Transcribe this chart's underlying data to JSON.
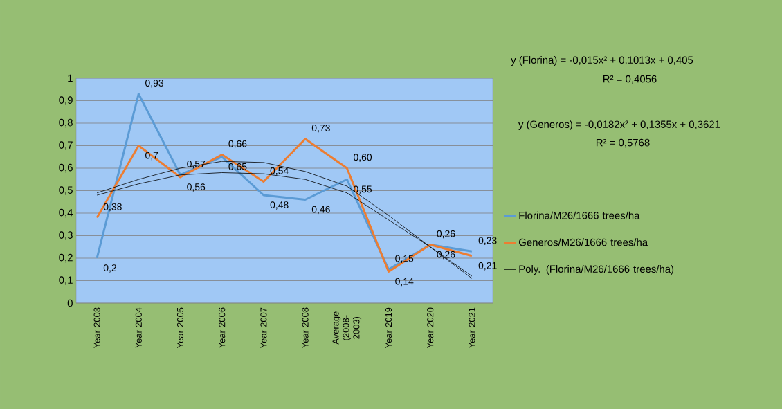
{
  "chart_data": {
    "type": "line",
    "categories": [
      "Year 2003",
      "Year 2004",
      "Year 2005",
      "Year 2006",
      "Year 2007",
      "Year 2008",
      "Average (2008-2003)",
      "Year 2019",
      "Year 2020",
      "Year 2021"
    ],
    "ylim": [
      0,
      1
    ],
    "yticks": [
      {
        "value": 0,
        "label": "0"
      },
      {
        "value": 0.1,
        "label": "0,1"
      },
      {
        "value": 0.2,
        "label": "0,2"
      },
      {
        "value": 0.3,
        "label": "0,3"
      },
      {
        "value": 0.4,
        "label": "0,4"
      },
      {
        "value": 0.5,
        "label": "0,5"
      },
      {
        "value": 0.6,
        "label": "0,6"
      },
      {
        "value": 0.7,
        "label": "0,7"
      },
      {
        "value": 0.8,
        "label": "0,8"
      },
      {
        "value": 0.9,
        "label": "0,9"
      },
      {
        "value": 1,
        "label": "1"
      }
    ],
    "grid": "y",
    "legend": "right",
    "line_style": "solid",
    "marker": "none",
    "series": [
      {
        "name": "Florina/M26/1666 trees/ha",
        "color": "#5b9bd5",
        "values": [
          0.2,
          0.93,
          0.57,
          0.65,
          0.48,
          0.46,
          0.55,
          0.15,
          0.26,
          0.23
        ],
        "value_labels": [
          "0,2",
          "0,93",
          "0,57",
          "0,65",
          "0,48",
          "0,46",
          "0,55",
          "0,15",
          "0,26",
          "0,23"
        ]
      },
      {
        "name": "Generos/M26/1666 trees/ha",
        "color": "#ed7d31",
        "values": [
          0.38,
          0.7,
          0.56,
          0.66,
          0.54,
          0.73,
          0.6,
          0.14,
          0.26,
          0.21
        ],
        "value_labels": [
          "0,38",
          "0,7",
          "0,56",
          "0,66",
          "0,54",
          "0,73",
          "0,60",
          "0,14",
          "0,26",
          "0,21"
        ]
      },
      {
        "name": "Poly. (Florina/M26/1666 trees/ha)",
        "type": "line",
        "color": "#000000",
        "values": [
          0.48,
          0.53,
          0.57,
          0.58,
          0.575,
          0.55,
          0.49,
          0.37,
          0.25,
          0.11
        ]
      },
      {
        "type": "line",
        "color": "#000000",
        "values": [
          0.49,
          0.55,
          0.6,
          0.63,
          0.625,
          0.585,
          0.52,
          0.39,
          0.25,
          0.12
        ]
      }
    ],
    "annotations": [
      "y (Florina) = -0,015x² + 0,1013x + 0,405",
      "R² = 0,4056",
      "y (Generos)  = -0,0182x² + 0,1355x + 0,3621",
      "R² = 0,5768"
    ]
  }
}
